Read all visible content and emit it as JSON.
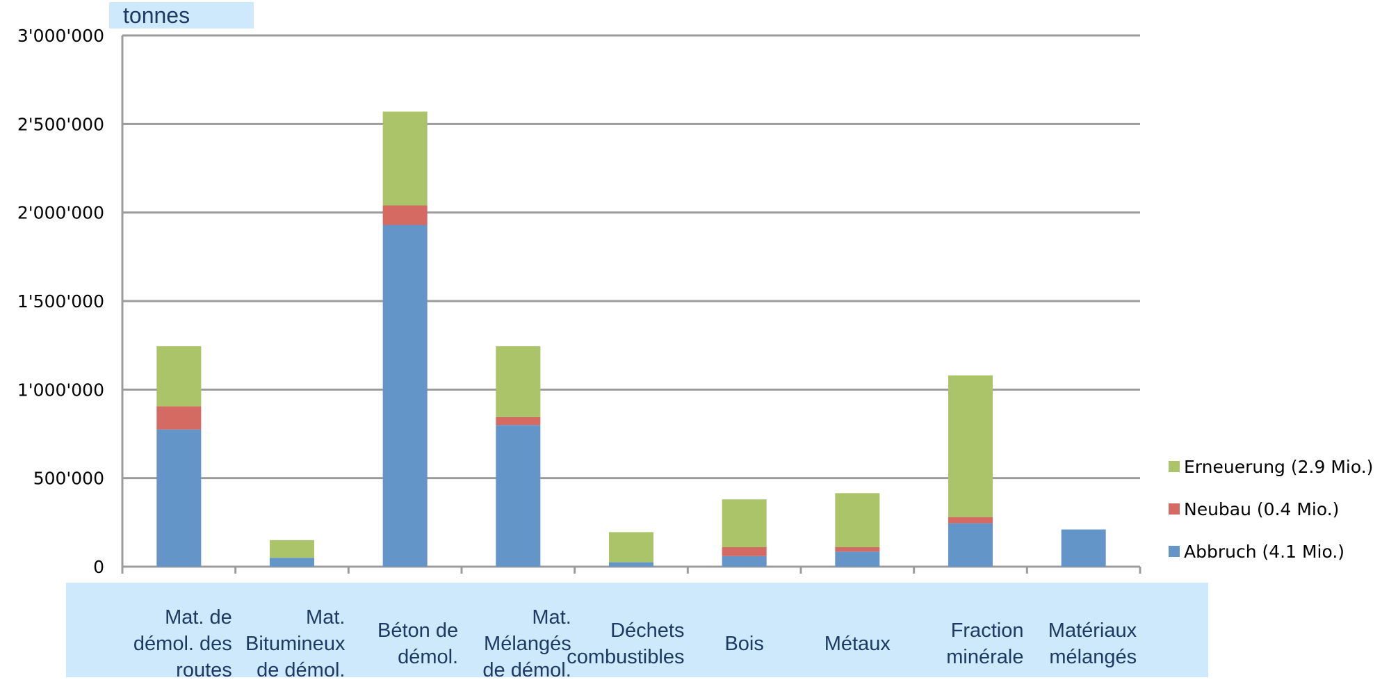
{
  "chart_data": {
    "type": "bar",
    "stacked": true,
    "unit_label": "tonnes",
    "title": "",
    "xlabel": "",
    "ylabel": "",
    "ylim": [
      0,
      3000000
    ],
    "y_ticks": [
      0,
      500000,
      1000000,
      1500000,
      2000000,
      2500000,
      3000000
    ],
    "y_tick_labels": [
      "0",
      "500'000",
      "1'000'000",
      "1'500'000",
      "2'000'000",
      "2'500'000",
      "3'000'000"
    ],
    "grid": true,
    "legend_position": "right",
    "categories": [
      [
        "Mat. de",
        "démol. des",
        "routes"
      ],
      [
        "Mat.",
        "Bitumineux",
        "de démol."
      ],
      [
        "Béton de",
        "démol."
      ],
      [
        "Mat.",
        "Mélangés",
        "de démol."
      ],
      [
        "Déchets",
        "combustibles"
      ],
      [
        "Bois"
      ],
      [
        "Métaux"
      ],
      [
        "Fraction",
        "minérale"
      ],
      [
        "Matériaux",
        "mélangés"
      ]
    ],
    "series": [
      {
        "name": "Abbruch (4.1 Mio.)",
        "color": "#6495C9",
        "values": [
          775000,
          50000,
          1930000,
          800000,
          25000,
          60000,
          85000,
          245000,
          210000
        ]
      },
      {
        "name": "Neubau (0.4 Mio.)",
        "color": "#D46A62",
        "values": [
          130000,
          0,
          110000,
          45000,
          0,
          50000,
          25000,
          35000,
          0
        ]
      },
      {
        "name": "Erneuerung (2.9 Mio.)",
        "color": "#ABC46A",
        "values": [
          340000,
          100000,
          530000,
          400000,
          170000,
          270000,
          305000,
          800000,
          0
        ]
      }
    ],
    "colors": {
      "grid": "#9B9B9B",
      "label_box": "#CDE9FB",
      "label_text": "#1f3864"
    }
  }
}
